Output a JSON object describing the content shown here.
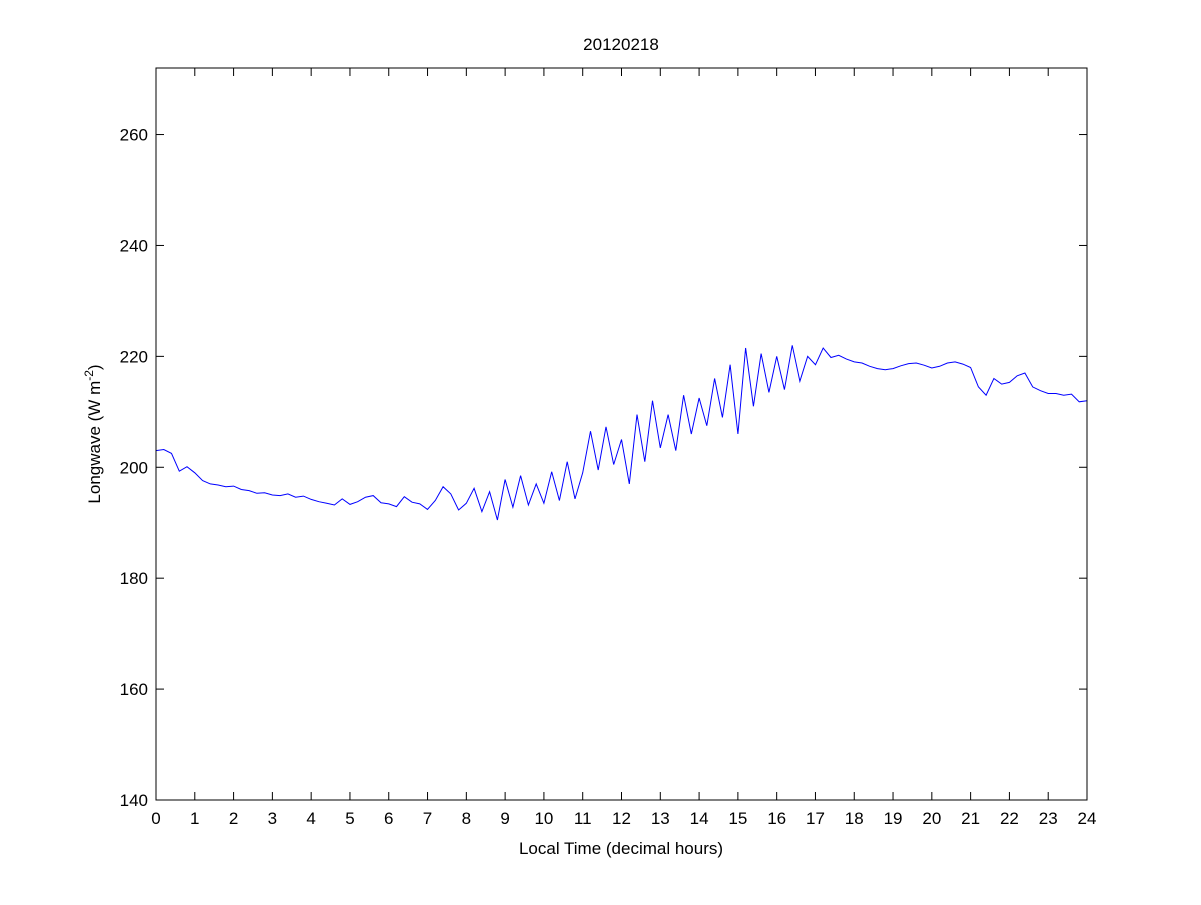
{
  "chart_data": {
    "type": "line",
    "title": "20120218",
    "xlabel": "Local Time (decimal hours)",
    "ylabel": "Longwave (W m",
    "ylabel_superscript": "-2",
    "ylabel_close": ")",
    "xlim": [
      0,
      24
    ],
    "ylim": [
      140,
      272
    ],
    "xticks": [
      0,
      1,
      2,
      3,
      4,
      5,
      6,
      7,
      8,
      9,
      10,
      11,
      12,
      13,
      14,
      15,
      16,
      17,
      18,
      19,
      20,
      21,
      22,
      23,
      24
    ],
    "yticks": [
      140,
      160,
      180,
      200,
      220,
      240,
      260
    ],
    "grid": false,
    "series": [
      {
        "name": "Longwave",
        "color": "#0000ff",
        "x_start": 0,
        "x_step": 0.2,
        "values": [
          203.0,
          203.2,
          202.5,
          199.3,
          200.1,
          199.0,
          197.6,
          197.0,
          196.8,
          196.5,
          196.6,
          196.0,
          195.8,
          195.3,
          195.4,
          195.0,
          194.9,
          195.2,
          194.6,
          194.8,
          194.2,
          193.8,
          193.5,
          193.2,
          194.3,
          193.3,
          193.8,
          194.6,
          194.9,
          193.6,
          193.4,
          192.9,
          194.7,
          193.7,
          193.4,
          192.4,
          194.0,
          196.5,
          195.2,
          192.3,
          193.5,
          196.2,
          192.0,
          195.6,
          190.5,
          197.8,
          192.8,
          198.5,
          193.2,
          197.0,
          193.5,
          199.2,
          194.0,
          201.0,
          194.3,
          199.0,
          206.5,
          199.5,
          207.3,
          200.5,
          205.0,
          197.0,
          209.5,
          201.0,
          212.0,
          203.5,
          209.5,
          203.0,
          213.0,
          206.0,
          212.5,
          207.5,
          216.0,
          209.0,
          218.5,
          206.0,
          221.5,
          211.0,
          220.5,
          213.5,
          220.0,
          214.0,
          222.0,
          215.5,
          220.0,
          218.5,
          221.5,
          219.8,
          220.2,
          219.5,
          219.0,
          218.8,
          218.2,
          217.8,
          217.6,
          217.8,
          218.3,
          218.7,
          218.8,
          218.4,
          217.9,
          218.2,
          218.8,
          219.0,
          218.6,
          218.0,
          214.5,
          213.0,
          216.0,
          215.0,
          215.3,
          216.5,
          217.0,
          214.5,
          213.8,
          213.3,
          213.3,
          213.0,
          213.2,
          211.8,
          212.0
        ]
      }
    ]
  }
}
